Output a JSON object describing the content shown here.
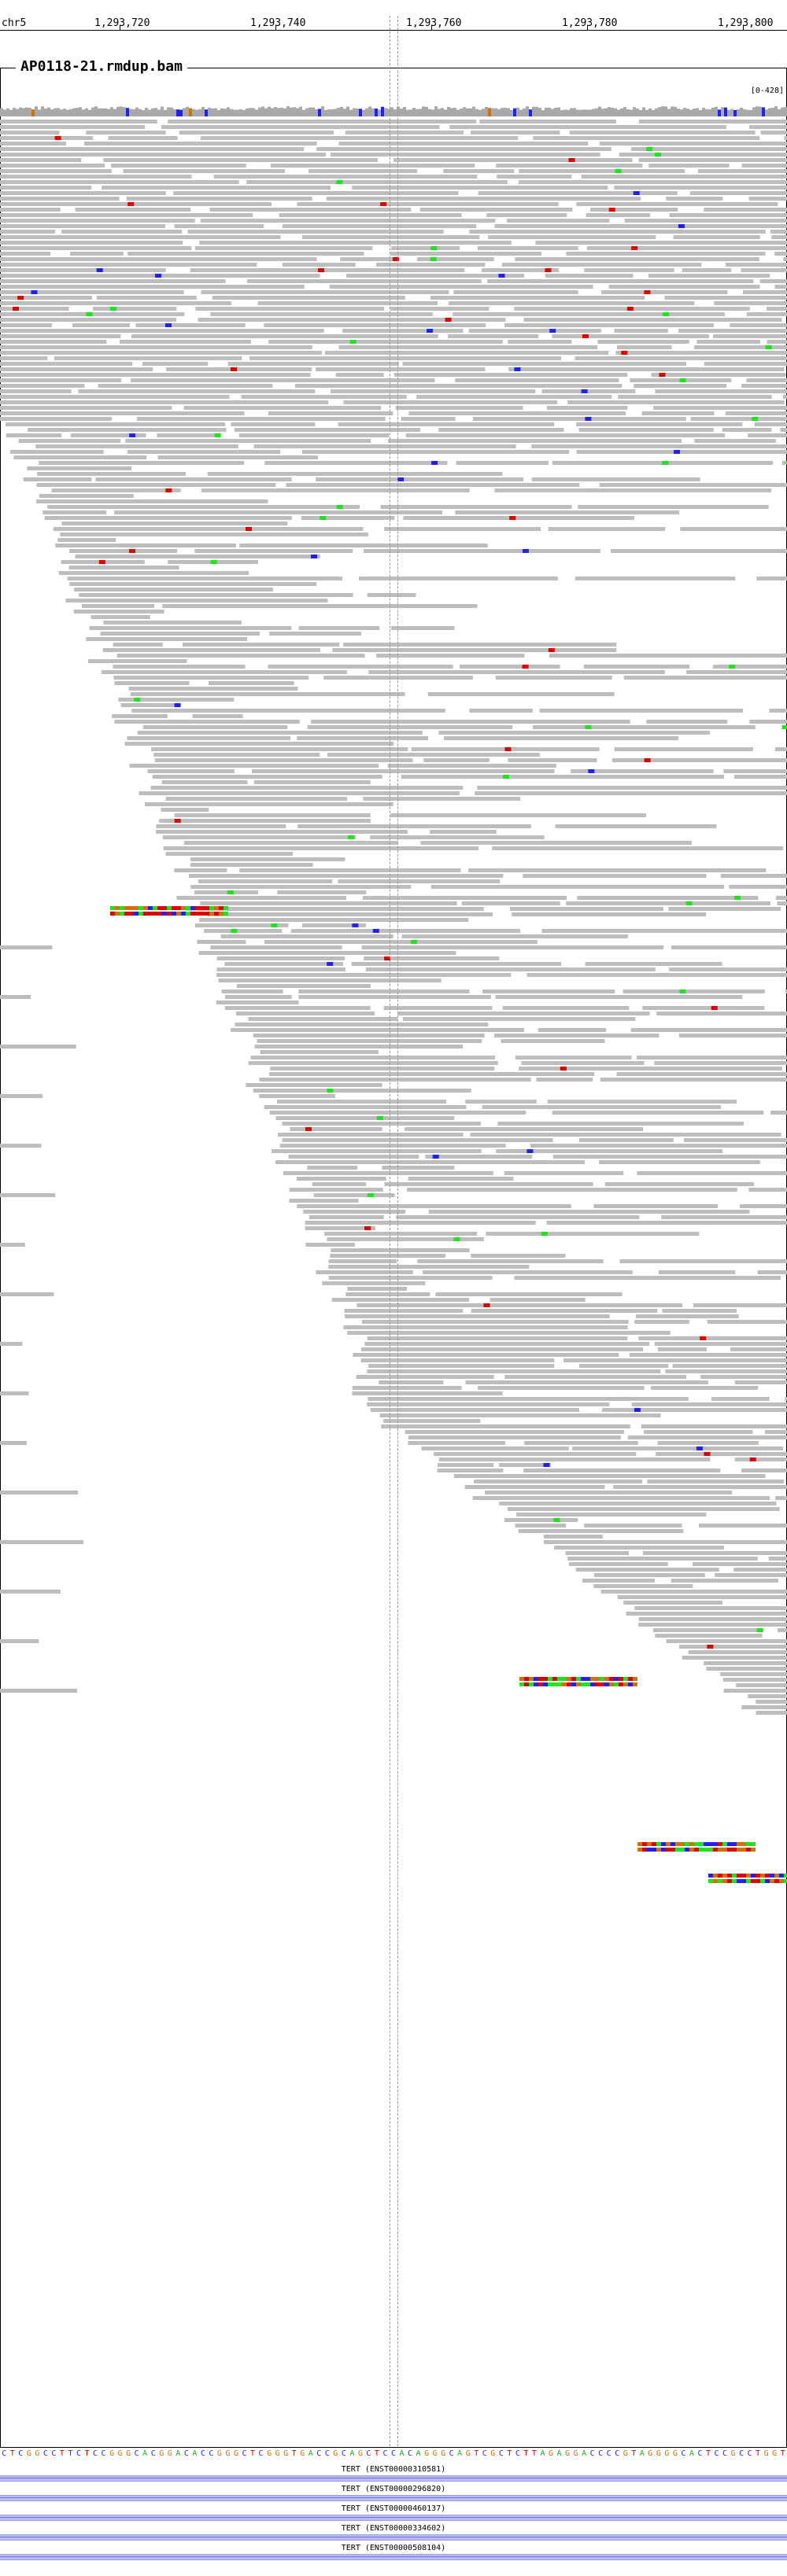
{
  "locus": {
    "chrom": "chr5",
    "ticks": [
      "1,293,720",
      "1,293,740",
      "1,293,760",
      "1,293,780",
      "1,293,800"
    ]
  },
  "track": {
    "title": "AP0118-21.rmdup.bam",
    "range": "[0-428]"
  },
  "colors": {
    "read": "#bdbdbd",
    "mismatch_T": "#e00000",
    "mismatch_A": "#19e619",
    "mismatch_C": "#2020ff",
    "mismatch_G": "#d17105",
    "insertion": "#8a2be2",
    "coverage": "#a9a9a9"
  },
  "sequence": {
    "bases": "CTCGGCCTTCTCCGGGCACGGACACCGGGCTCGGGTGACCGCAGCTCCACAGGGCAGTCGCTCTTAGAGGACCCCGTAGGGGCACTCCGCCTGGT"
  },
  "genes": [
    {
      "label": "TERT (ENST00000310581)"
    },
    {
      "label": "TERT (ENST00000296820)"
    },
    {
      "label": "TERT (ENST00000460137)"
    },
    {
      "label": "TERT (ENST00000334602)"
    },
    {
      "label": "TERT (ENST00000508104)"
    }
  ]
}
